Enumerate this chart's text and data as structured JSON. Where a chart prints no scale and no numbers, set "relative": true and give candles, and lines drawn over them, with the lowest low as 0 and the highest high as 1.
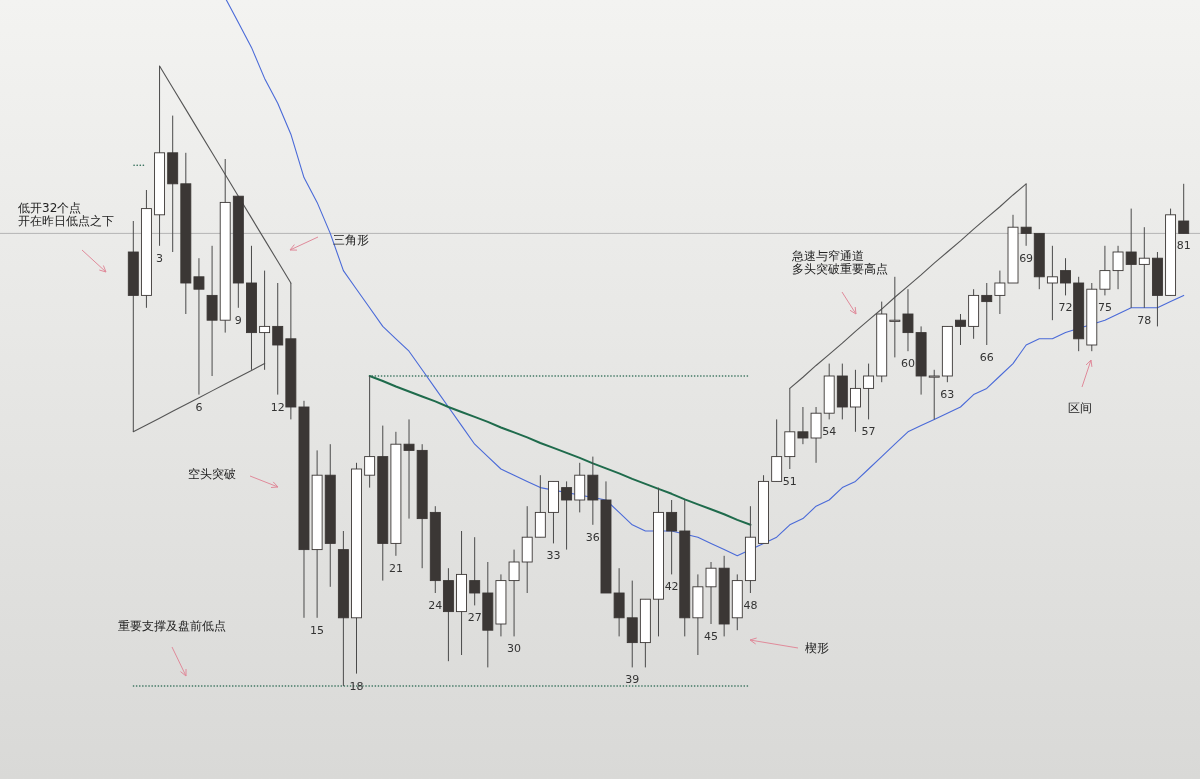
{
  "chart_data": {
    "type": "candlestick",
    "relative": true,
    "categories": [
      null,
      null,
      "3",
      null,
      null,
      "6",
      null,
      null,
      "9",
      null,
      null,
      "12",
      null,
      null,
      "15",
      null,
      null,
      "18",
      null,
      null,
      "21",
      null,
      null,
      "24",
      null,
      null,
      "27",
      null,
      null,
      "30",
      null,
      null,
      "33",
      null,
      null,
      "36",
      null,
      null,
      "39",
      null,
      null,
      "42",
      null,
      null,
      "45",
      null,
      null,
      "48",
      null,
      null,
      "51",
      null,
      null,
      "54",
      null,
      null,
      "57",
      null,
      null,
      "60",
      null,
      null,
      "63",
      null,
      null,
      "66",
      null,
      null,
      "69",
      null,
      null,
      "72",
      null,
      null,
      "75",
      null,
      null,
      "78",
      null,
      null,
      "81"
    ],
    "ohlc": [
      [
        0.7,
        0.75,
        0.41,
        0.63
      ],
      [
        0.63,
        0.8,
        0.61,
        0.77
      ],
      [
        0.76,
        1.0,
        0.71,
        0.86
      ],
      [
        0.86,
        0.92,
        0.7,
        0.81
      ],
      [
        0.81,
        0.86,
        0.6,
        0.65
      ],
      [
        0.66,
        0.69,
        0.47,
        0.64
      ],
      [
        0.63,
        0.71,
        0.5,
        0.59
      ],
      [
        0.59,
        0.85,
        0.57,
        0.78
      ],
      [
        0.79,
        0.79,
        0.61,
        0.65
      ],
      [
        0.65,
        0.71,
        0.51,
        0.57
      ],
      [
        0.57,
        0.67,
        0.51,
        0.58
      ],
      [
        0.58,
        0.65,
        0.47,
        0.55
      ],
      [
        0.56,
        0.65,
        0.43,
        0.45
      ],
      [
        0.45,
        0.46,
        0.11,
        0.22
      ],
      [
        0.22,
        0.38,
        0.11,
        0.34
      ],
      [
        0.34,
        0.39,
        0.16,
        0.23
      ],
      [
        0.22,
        0.25,
        0.0,
        0.11
      ],
      [
        0.11,
        0.36,
        0.02,
        0.35
      ],
      [
        0.34,
        0.5,
        0.32,
        0.37
      ],
      [
        0.37,
        0.42,
        0.17,
        0.23
      ],
      [
        0.23,
        0.41,
        0.21,
        0.39
      ],
      [
        0.39,
        0.43,
        0.27,
        0.38
      ],
      [
        0.38,
        0.39,
        0.19,
        0.27
      ],
      [
        0.28,
        0.29,
        0.15,
        0.17
      ],
      [
        0.17,
        0.19,
        0.04,
        0.12
      ],
      [
        0.12,
        0.25,
        0.05,
        0.18
      ],
      [
        0.17,
        0.24,
        0.13,
        0.15
      ],
      [
        0.15,
        0.2,
        0.03,
        0.09
      ],
      [
        0.1,
        0.18,
        0.08,
        0.17
      ],
      [
        0.17,
        0.22,
        0.08,
        0.2
      ],
      [
        0.2,
        0.29,
        0.15,
        0.24
      ],
      [
        0.24,
        0.34,
        0.24,
        0.28
      ],
      [
        0.28,
        0.33,
        0.23,
        0.33
      ],
      [
        0.32,
        0.33,
        0.22,
        0.3
      ],
      [
        0.3,
        0.36,
        0.28,
        0.34
      ],
      [
        0.34,
        0.37,
        0.26,
        0.3
      ],
      [
        0.3,
        0.33,
        0.15,
        0.15
      ],
      [
        0.15,
        0.19,
        0.08,
        0.11
      ],
      [
        0.11,
        0.17,
        0.03,
        0.07
      ],
      [
        0.07,
        0.14,
        0.03,
        0.14
      ],
      [
        0.14,
        0.32,
        0.08,
        0.28
      ],
      [
        0.28,
        0.3,
        0.18,
        0.25
      ],
      [
        0.25,
        0.3,
        0.08,
        0.11
      ],
      [
        0.11,
        0.18,
        0.05,
        0.16
      ],
      [
        0.16,
        0.2,
        0.1,
        0.19
      ],
      [
        0.19,
        0.21,
        0.08,
        0.1
      ],
      [
        0.11,
        0.18,
        0.09,
        0.17
      ],
      [
        0.17,
        0.29,
        0.15,
        0.24
      ],
      [
        0.23,
        0.34,
        0.23,
        0.33
      ],
      [
        0.33,
        0.43,
        0.33,
        0.37
      ],
      [
        0.37,
        0.48,
        0.35,
        0.41
      ],
      [
        0.41,
        0.45,
        0.39,
        0.4
      ],
      [
        0.4,
        0.45,
        0.36,
        0.44
      ],
      [
        0.44,
        0.52,
        0.43,
        0.5
      ],
      [
        0.5,
        0.52,
        0.43,
        0.45
      ],
      [
        0.45,
        0.51,
        0.41,
        0.48
      ],
      [
        0.48,
        0.52,
        0.43,
        0.5
      ],
      [
        0.5,
        0.62,
        0.49,
        0.6
      ],
      [
        0.59,
        0.66,
        0.53,
        0.59
      ],
      [
        0.6,
        0.64,
        0.54,
        0.57
      ],
      [
        0.57,
        0.58,
        0.47,
        0.5
      ],
      [
        0.5,
        0.51,
        0.43,
        0.5
      ],
      [
        0.5,
        0.58,
        0.49,
        0.58
      ],
      [
        0.59,
        0.6,
        0.55,
        0.58
      ],
      [
        0.58,
        0.64,
        0.56,
        0.63
      ],
      [
        0.63,
        0.65,
        0.55,
        0.62
      ],
      [
        0.63,
        0.67,
        0.6,
        0.65
      ],
      [
        0.65,
        0.76,
        0.65,
        0.74
      ],
      [
        0.74,
        0.81,
        0.71,
        0.73
      ],
      [
        0.73,
        0.73,
        0.64,
        0.66
      ],
      [
        0.65,
        0.71,
        0.59,
        0.66
      ],
      [
        0.67,
        0.69,
        0.63,
        0.65
      ],
      [
        0.65,
        0.66,
        0.54,
        0.56
      ],
      [
        0.55,
        0.65,
        0.54,
        0.64
      ],
      [
        0.64,
        0.71,
        0.63,
        0.67
      ],
      [
        0.67,
        0.71,
        0.64,
        0.7
      ],
      [
        0.7,
        0.77,
        0.61,
        0.68
      ],
      [
        0.68,
        0.74,
        0.61,
        0.69
      ],
      [
        0.69,
        0.7,
        0.58,
        0.63
      ],
      [
        0.63,
        0.77,
        0.63,
        0.76
      ],
      [
        0.75,
        0.81,
        0.73,
        0.73
      ]
    ],
    "series": [
      {
        "type": "line",
        "color": "#4a6ad8",
        "values": [
          null,
          null,
          null,
          null,
          null,
          null,
          null,
          1.11,
          1.07,
          1.03,
          0.98,
          0.94,
          0.89,
          0.82,
          0.78,
          0.73,
          0.67,
          0.64,
          0.61,
          0.58,
          0.56,
          0.54,
          0.51,
          0.48,
          0.45,
          0.42,
          0.39,
          0.37,
          0.35,
          0.34,
          0.33,
          0.32,
          null,
          null,
          null,
          null,
          0.3,
          0.28,
          0.26,
          0.25,
          null,
          0.25,
          null,
          0.24,
          0.23,
          0.22,
          0.21,
          null,
          0.23,
          0.24,
          0.26,
          0.27,
          0.29,
          0.3,
          0.32,
          0.33,
          0.35,
          0.37,
          0.39,
          0.41,
          0.42,
          0.43,
          0.44,
          0.45,
          0.47,
          0.48,
          0.5,
          0.52,
          0.55,
          0.56,
          0.56,
          0.57,
          null,
          null,
          0.59,
          0.6,
          0.61,
          0.61,
          0.61,
          0.62,
          0.63
        ]
      },
      {
        "type": "line",
        "color": "#555555",
        "values": [
          null,
          null,
          1.0,
          0.965,
          0.93,
          0.895,
          0.86,
          0.825,
          0.79,
          0.755,
          0.72,
          0.685,
          0.65,
          null,
          null,
          null,
          null,
          null,
          null,
          null,
          null,
          null,
          null,
          null,
          null,
          null,
          null,
          null,
          null,
          null,
          null,
          null,
          null,
          null,
          null,
          null,
          null,
          null,
          null,
          null,
          null,
          null,
          null,
          null,
          null,
          null,
          null,
          null,
          null,
          null,
          null,
          null,
          null,
          null,
          null,
          null,
          null,
          null,
          null,
          null,
          null,
          null,
          null,
          null,
          null,
          null,
          null,
          null,
          null,
          null,
          null,
          null,
          null,
          null,
          null,
          null,
          null,
          null,
          null,
          null,
          null
        ]
      },
      {
        "type": "line",
        "color": "#555555",
        "values": [
          0.41,
          0.421,
          0.432,
          0.443,
          0.454,
          0.465,
          0.476,
          0.487,
          0.498,
          0.509,
          0.52,
          null,
          null,
          null,
          null,
          null,
          null,
          null,
          null,
          null,
          null,
          null,
          null,
          null,
          null,
          null,
          null,
          null,
          null,
          null,
          null,
          null,
          null,
          null,
          null,
          null,
          null,
          null,
          null,
          null,
          null,
          null,
          null,
          null,
          null,
          null,
          null,
          null,
          null,
          null,
          null,
          null,
          null,
          null,
          null,
          null,
          null,
          null,
          null,
          null,
          null,
          null,
          null,
          null,
          null,
          null,
          null,
          null,
          null,
          null,
          null,
          null,
          null,
          null,
          null,
          null,
          null,
          null,
          null,
          null,
          null
        ]
      },
      {
        "type": "line",
        "color": "#1f6b4c",
        "values": [
          null,
          null,
          null,
          null,
          null,
          null,
          null,
          null,
          null,
          null,
          null,
          null,
          null,
          null,
          null,
          null,
          null,
          null,
          0.5,
          0.492,
          0.483,
          0.475,
          0.467,
          0.459,
          0.45,
          0.442,
          0.434,
          0.426,
          0.417,
          0.409,
          0.401,
          0.392,
          0.384,
          0.376,
          0.368,
          0.359,
          0.351,
          0.343,
          0.334,
          0.326,
          0.318,
          0.31,
          0.301,
          0.293,
          0.285,
          0.277,
          0.268,
          0.26,
          null,
          null,
          null,
          null,
          null,
          null,
          null,
          null,
          null,
          null,
          null,
          null,
          null,
          null,
          null,
          null,
          null,
          null,
          null,
          null,
          null,
          null,
          null,
          null,
          null,
          null,
          null,
          null,
          null,
          null,
          null,
          null,
          null
        ]
      },
      {
        "type": "line",
        "color": "#555555",
        "values": [
          null,
          null,
          null,
          null,
          null,
          null,
          null,
          null,
          null,
          null,
          null,
          null,
          null,
          null,
          null,
          null,
          null,
          null,
          null,
          null,
          null,
          null,
          null,
          null,
          null,
          null,
          null,
          null,
          null,
          null,
          null,
          null,
          null,
          null,
          null,
          null,
          null,
          null,
          null,
          null,
          null,
          null,
          null,
          null,
          null,
          null,
          null,
          null,
          null,
          null,
          0.48,
          0.498,
          0.517,
          0.535,
          0.553,
          0.572,
          0.59,
          0.608,
          0.627,
          0.645,
          0.663,
          0.682,
          0.7,
          0.718,
          0.737,
          0.755,
          0.773,
          0.792,
          0.81,
          null,
          null,
          null,
          null,
          null,
          null,
          null,
          null,
          null,
          null,
          null,
          null
        ]
      },
      {
        "type": "line",
        "color": "#2e6b55",
        "line_style": "dotted",
        "values": [
          0.84,
          0.84,
          null,
          null,
          null,
          null,
          null,
          null,
          null,
          null,
          null,
          null,
          null,
          null,
          null,
          null,
          null,
          null,
          null,
          null,
          null,
          null,
          null,
          null,
          null,
          null,
          null,
          null,
          null,
          null,
          null,
          null,
          null,
          null,
          null,
          null,
          null,
          null,
          null,
          null,
          null,
          null,
          null,
          null,
          null,
          null,
          null,
          null,
          null,
          null,
          null,
          null,
          null,
          null,
          null,
          null,
          null,
          null,
          null,
          null,
          null,
          null,
          null,
          null,
          null,
          null,
          null,
          null,
          null,
          null,
          null,
          null,
          null,
          null,
          null,
          null,
          null,
          null,
          null,
          null,
          null
        ]
      },
      {
        "type": "line",
        "color": "#2e6b55",
        "line_style": "dotted",
        "values": [
          null,
          null,
          null,
          null,
          null,
          null,
          null,
          null,
          null,
          null,
          null,
          null,
          null,
          null,
          null,
          null,
          null,
          null,
          0.5,
          0.5,
          0.5,
          0.5,
          0.5,
          0.5,
          0.5,
          0.5,
          0.5,
          0.5,
          0.5,
          0.5,
          0.5,
          0.5,
          0.5,
          0.5,
          0.5,
          0.5,
          0.5,
          0.5,
          0.5,
          0.5,
          0.5,
          0.5,
          0.5,
          0.5,
          0.5,
          0.5,
          0.5,
          0.5,
          null,
          null,
          null,
          null,
          null,
          null,
          null,
          null,
          null,
          null,
          null,
          null,
          null,
          null,
          null,
          null,
          null,
          null,
          null,
          null,
          null,
          null,
          null,
          null,
          null,
          null,
          null,
          null,
          null,
          null,
          null,
          null,
          null
        ]
      },
      {
        "type": "line",
        "color": "#2e6b55",
        "line_style": "dotted",
        "values": [
          0.0,
          0.0,
          0.0,
          0.0,
          0.0,
          0.0,
          0.0,
          0.0,
          0.0,
          0.0,
          0.0,
          0.0,
          0.0,
          0.0,
          0.0,
          0.0,
          0.0,
          0.0,
          0.0,
          0.0,
          0.0,
          0.0,
          0.0,
          0.0,
          0.0,
          0.0,
          0.0,
          0.0,
          0.0,
          0.0,
          0.0,
          0.0,
          0.0,
          0.0,
          0.0,
          0.0,
          0.0,
          0.0,
          0.0,
          0.0,
          0.0,
          0.0,
          0.0,
          0.0,
          0.0,
          0.0,
          0.0,
          0.0,
          null,
          null,
          null,
          null,
          null,
          null,
          null,
          null,
          null,
          null,
          null,
          null,
          null,
          null,
          null,
          null,
          null,
          null,
          null,
          null,
          null,
          null,
          null,
          null,
          null,
          null,
          null,
          null,
          null,
          null,
          null,
          null,
          null
        ]
      }
    ],
    "ref_lines": [
      {
        "axis": "y",
        "value": 0.73,
        "color": "#b4b4b4"
      }
    ],
    "annotations": [
      "低开32个点",
      "开在昨日低点之下",
      "三角形",
      "空头突破",
      "重要支撑及盘前低点",
      "楔形",
      "急速与窄通道",
      "多头突破重要高点",
      "区间"
    ]
  }
}
